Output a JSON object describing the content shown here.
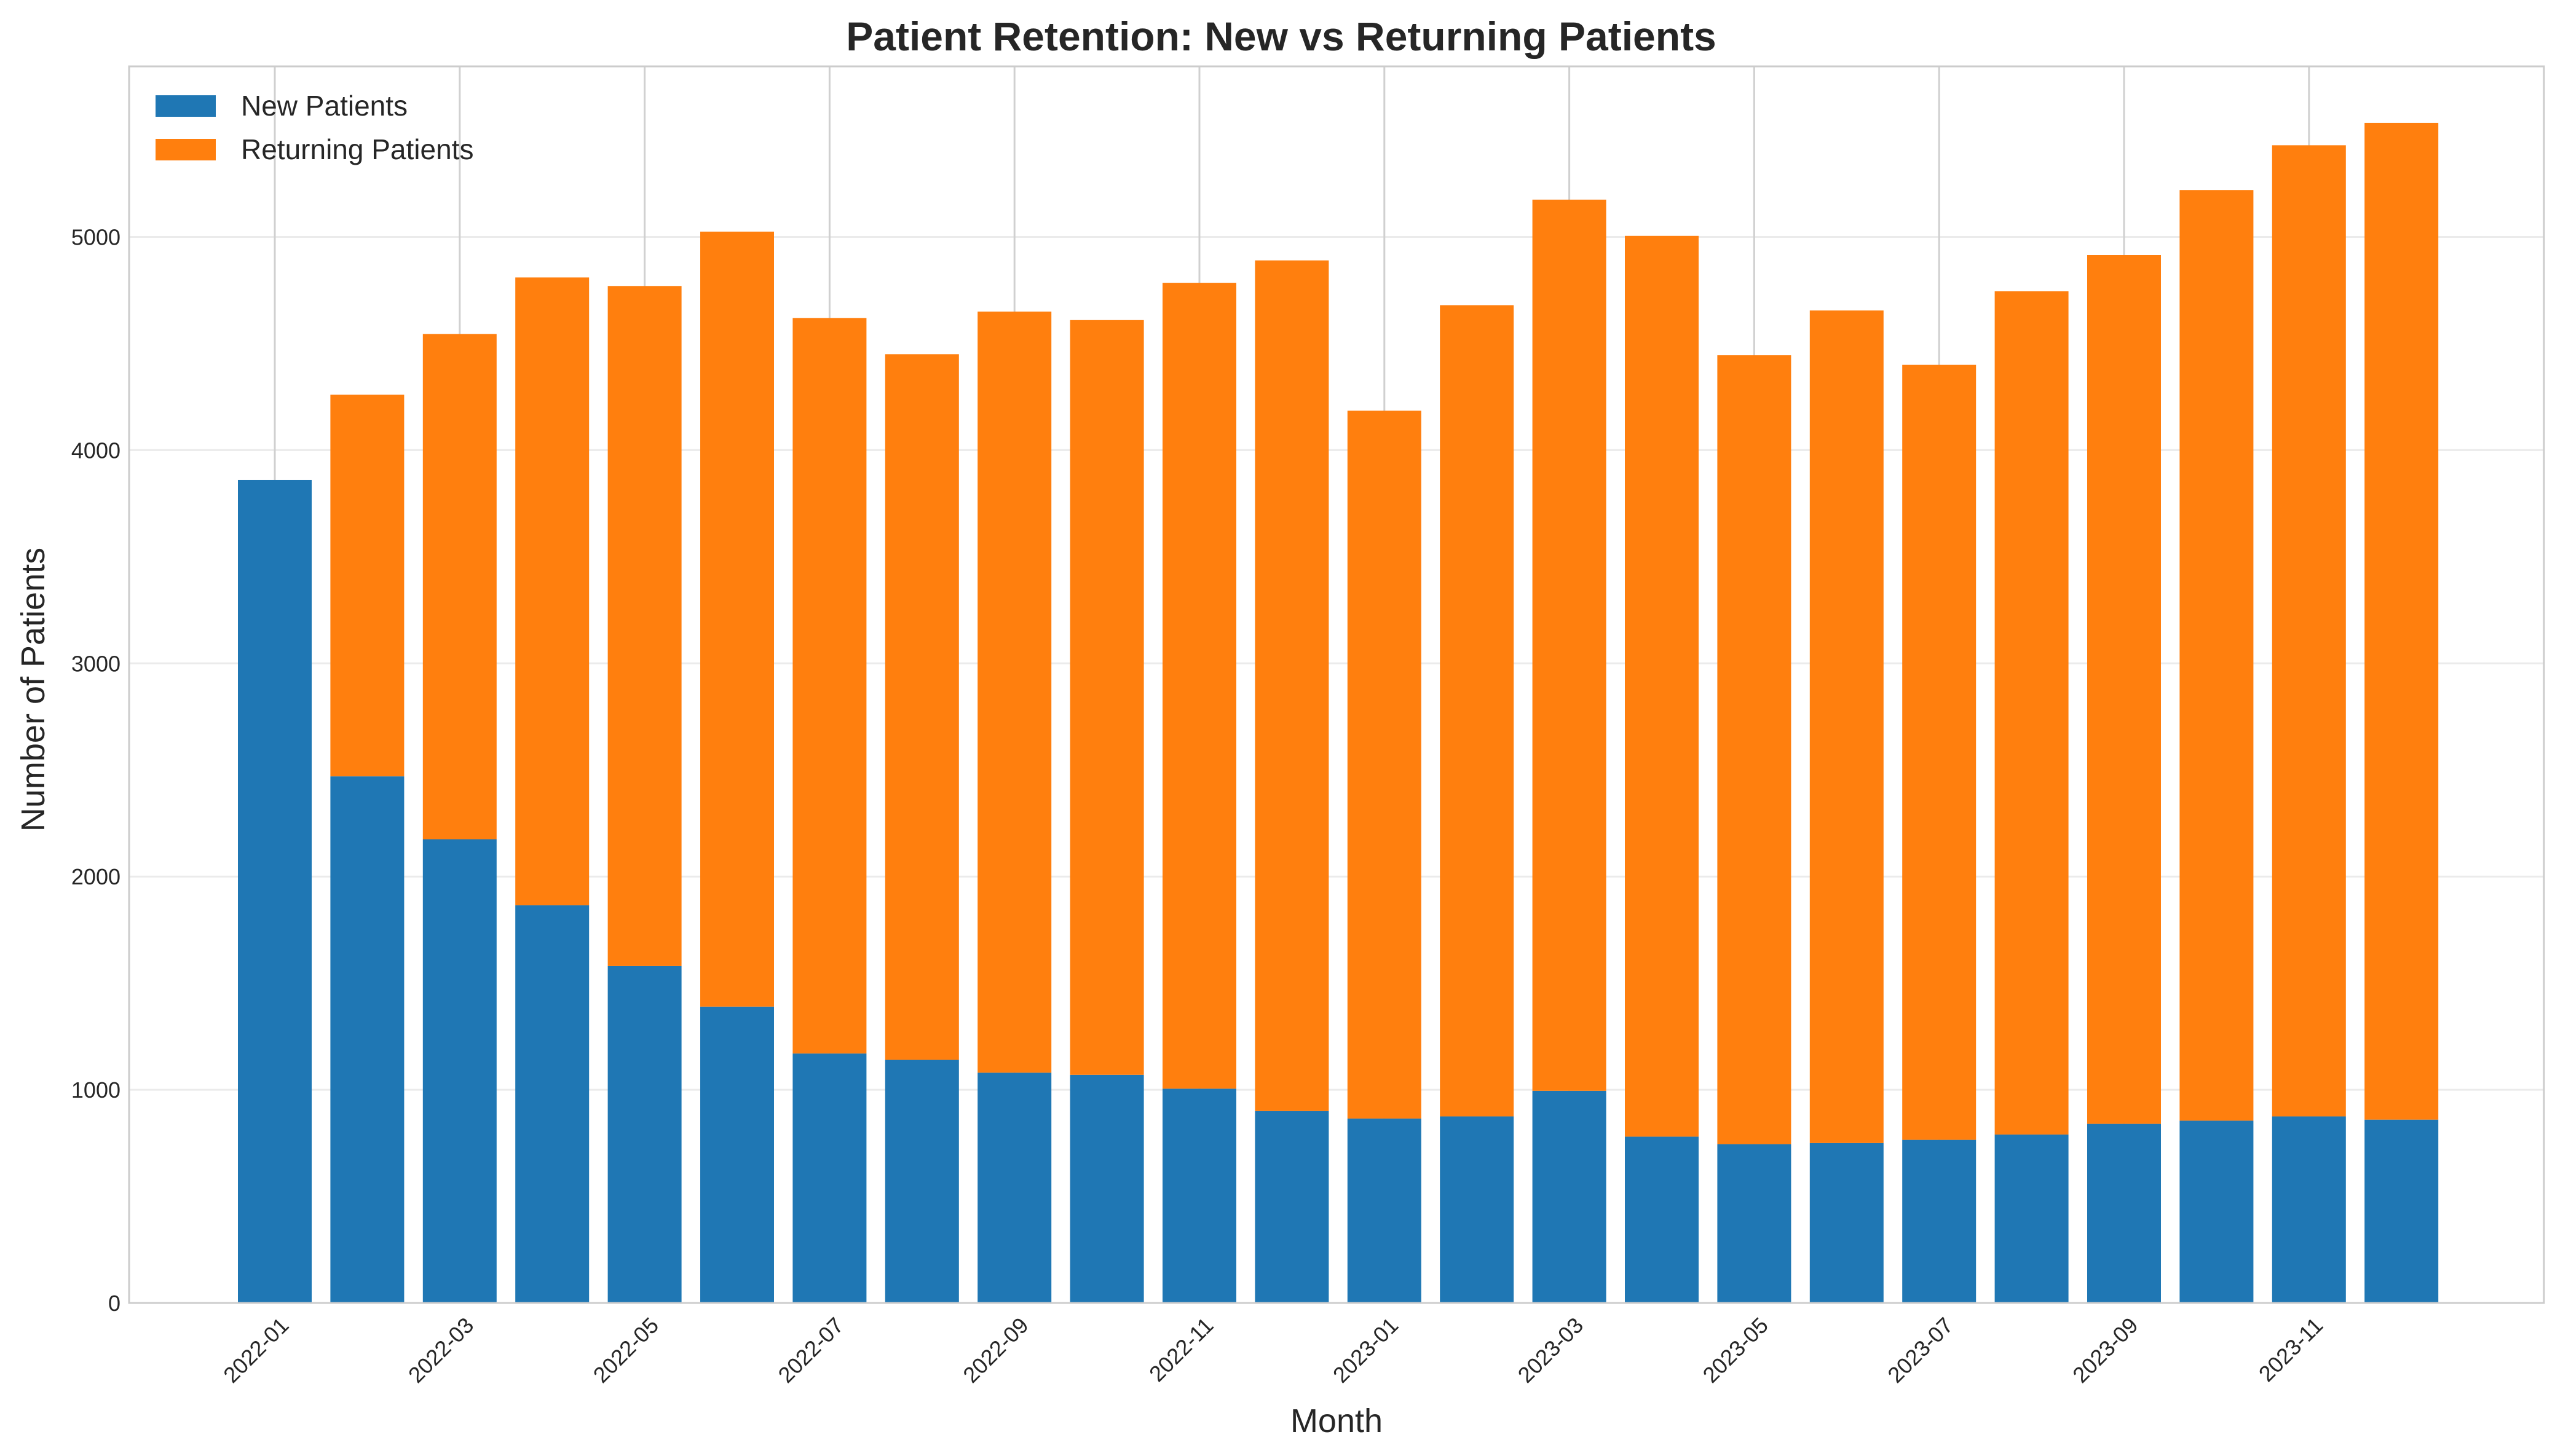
{
  "chart_data": {
    "type": "bar",
    "stacked": true,
    "title": "Patient Retention: New vs Returning Patients",
    "xlabel": "Month",
    "ylabel": "Number of Patients",
    "ylim": [
      0,
      5800
    ],
    "yticks": [
      0,
      1000,
      2000,
      3000,
      4000,
      5000
    ],
    "categories": [
      "2022-01",
      "2022-02",
      "2022-03",
      "2022-04",
      "2022-05",
      "2022-06",
      "2022-07",
      "2022-08",
      "2022-09",
      "2022-10",
      "2022-11",
      "2022-12",
      "2023-01",
      "2023-02",
      "2023-03",
      "2023-04",
      "2023-05",
      "2023-06",
      "2023-07",
      "2023-08",
      "2023-09",
      "2023-10",
      "2023-11",
      "2023-12"
    ],
    "xtick_labels": [
      "2022-01",
      "2022-03",
      "2022-05",
      "2022-07",
      "2022-09",
      "2022-11",
      "2023-01",
      "2023-03",
      "2023-05",
      "2023-07",
      "2023-09",
      "2023-11"
    ],
    "series": [
      {
        "name": "New Patients",
        "color": "#1f77b4",
        "values": [
          3860,
          2470,
          2175,
          1865,
          1580,
          1390,
          1170,
          1140,
          1080,
          1070,
          1005,
          900,
          865,
          875,
          995,
          780,
          745,
          750,
          765,
          790,
          840,
          855,
          875,
          860
        ]
      },
      {
        "name": "Returning Patients",
        "color": "#ff7f0e",
        "values": [
          0,
          1790,
          2370,
          2945,
          3190,
          3635,
          3450,
          3310,
          3570,
          3540,
          3780,
          3990,
          3320,
          3805,
          4180,
          4225,
          3700,
          3905,
          3635,
          3955,
          4075,
          4365,
          4555,
          4675
        ]
      }
    ],
    "grid": true,
    "legend": "top-left"
  }
}
